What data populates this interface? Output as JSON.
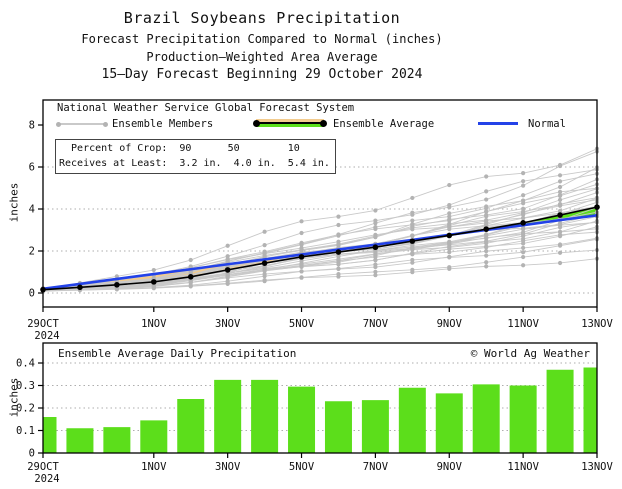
{
  "header": {
    "title": "Brazil Soybeans Precipitation",
    "subtitle1": "Forecast Precipitation Compared to Normal (inches)",
    "subtitle2": "Production–Weighted Area Average",
    "subtitle3": "15–Day Forecast Beginning 29 October 2024"
  },
  "top_chart": {
    "legend": {
      "header": "National Weather Service Global Forecast System",
      "members_label": "Ensemble Members",
      "average_label": "Ensemble Average",
      "normal_label": "Normal"
    },
    "stats_box": {
      "row1": "  Percent of Crop:  90      50        10",
      "row2": "Receives at Least:  3.2 in.  4.0 in.  5.4 in."
    },
    "ylabel": "inches"
  },
  "bottom_chart": {
    "title": "Ensemble Average Daily Precipitation",
    "credit": "© World Ag Weather",
    "ylabel": "inches"
  },
  "colors": {
    "bar_green": "#5cde1b",
    "band_green": "#5cde1b",
    "band_tan": "#f2cb8e",
    "normal_blue": "#2342e8",
    "member_gray": "#c9c9c9",
    "member_dot_gray": "#b3b3b3",
    "average_black": "#000000",
    "grid_gray": "#aeaeae"
  },
  "chart_data": [
    {
      "type": "line",
      "title": "Forecast cumulative precipitation compared to normal (inches)",
      "x": [
        "29OCT",
        "30OCT",
        "31OCT",
        "1NOV",
        "2NOV",
        "3NOV",
        "4NOV",
        "5NOV",
        "6NOV",
        "7NOV",
        "8NOV",
        "9NOV",
        "10NOV",
        "11NOV",
        "12NOV",
        "13NOV"
      ],
      "x_year": "2024",
      "xtick_indices": [
        0,
        3,
        5,
        7,
        9,
        11,
        13,
        15
      ],
      "xtick_labels": [
        "29OCT",
        "1NOV",
        "3NOV",
        "5NOV",
        "7NOV",
        "9NOV",
        "11NOV",
        "13NOV"
      ],
      "ylabel": "inches",
      "ylim": [
        -0.67,
        9.19
      ],
      "yticks": [
        0,
        2,
        4,
        6,
        8
      ],
      "grid": "dotted horizontal at 0,2,4,6",
      "legend_position": "top inside",
      "series": [
        {
          "name": "Ensemble Average",
          "values": [
            0.16,
            0.27,
            0.39,
            0.53,
            0.77,
            1.1,
            1.42,
            1.72,
            1.95,
            2.18,
            2.47,
            2.74,
            3.04,
            3.34,
            3.71,
            4.09
          ]
        },
        {
          "name": "Normal",
          "values": [
            0.2,
            0.43,
            0.67,
            0.9,
            1.13,
            1.37,
            1.6,
            1.83,
            2.07,
            2.3,
            2.53,
            2.77,
            3.0,
            3.23,
            3.47,
            3.7
          ]
        }
      ],
      "fill_between": {
        "above_normal": "green",
        "below_normal": "tan"
      },
      "ensemble_member_finals": [
        6.9,
        6.5,
        6.15,
        5.85,
        5.6,
        5.4,
        5.2,
        5.05,
        4.9,
        4.75,
        4.6,
        4.5,
        4.4,
        4.3,
        4.2,
        4.1,
        4.0,
        3.9,
        3.8,
        3.7,
        3.6,
        3.5,
        3.4,
        3.3,
        3.2,
        3.05,
        2.9,
        2.7,
        2.45,
        2.1,
        1.65
      ],
      "ensemble_member_start_range": [
        0.08,
        0.25
      ]
    },
    {
      "type": "bar",
      "title": "Ensemble Average Daily Precipitation",
      "categories": [
        "29OCT",
        "30OCT",
        "31OCT",
        "1NOV",
        "2NOV",
        "3NOV",
        "4NOV",
        "5NOV",
        "6NOV",
        "7NOV",
        "8NOV",
        "9NOV",
        "10NOV",
        "11NOV",
        "12NOV",
        "13NOV"
      ],
      "x_year": "2024",
      "xtick_indices": [
        0,
        3,
        5,
        7,
        9,
        11,
        13,
        15
      ],
      "xtick_labels": [
        "29OCT",
        "1NOV",
        "3NOV",
        "5NOV",
        "7NOV",
        "9NOV",
        "11NOV",
        "13NOV"
      ],
      "values": [
        0.16,
        0.11,
        0.115,
        0.145,
        0.24,
        0.325,
        0.325,
        0.295,
        0.23,
        0.235,
        0.29,
        0.265,
        0.305,
        0.3,
        0.37,
        0.38
      ],
      "ylabel": "inches",
      "ylim": [
        0,
        0.49
      ],
      "yticks": [
        0,
        0.1,
        0.2,
        0.3,
        0.4
      ],
      "grid": "dotted horizontal at 0.1,0.2,0.3,0.4"
    }
  ]
}
